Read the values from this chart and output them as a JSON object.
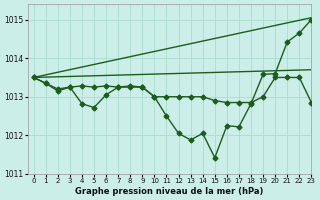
{
  "background_color": "#cceee8",
  "grid_color": "#aaddcc",
  "line_color": "#1e5c1e",
  "title": "Graphe pression niveau de la mer (hPa)",
  "xlim": [
    -0.5,
    23
  ],
  "ylim": [
    1011.0,
    1015.4
  ],
  "yticks": [
    1011,
    1012,
    1013,
    1014,
    1015
  ],
  "xticks": [
    0,
    1,
    2,
    3,
    4,
    5,
    6,
    7,
    8,
    9,
    10,
    11,
    12,
    13,
    14,
    15,
    16,
    17,
    18,
    19,
    20,
    21,
    22,
    23
  ],
  "series": [
    {
      "x": [
        0,
        23
      ],
      "y": [
        1013.5,
        1015.05
      ],
      "marker": null,
      "markersize": 0,
      "linewidth": 1.0
    },
    {
      "x": [
        0,
        23
      ],
      "y": [
        1013.5,
        1013.7
      ],
      "marker": null,
      "markersize": 0,
      "linewidth": 1.0
    },
    {
      "x": [
        0,
        1,
        2,
        3,
        4,
        5,
        6,
        7,
        8,
        9,
        10,
        11,
        12,
        13,
        14,
        15,
        16,
        17,
        18,
        19,
        20,
        21,
        22,
        23
      ],
      "y": [
        1013.5,
        1013.35,
        1013.15,
        1013.25,
        1012.82,
        1012.72,
        1013.05,
        1013.25,
        1013.25,
        1013.25,
        1013.0,
        1012.5,
        1012.05,
        1011.88,
        1012.05,
        1011.42,
        1012.25,
        1012.22,
        1012.82,
        1013.58,
        1013.6,
        1014.42,
        1014.65,
        1015.0
      ],
      "marker": "D",
      "markersize": 2.5,
      "linewidth": 1.0
    },
    {
      "x": [
        0,
        1,
        2,
        3,
        4,
        5,
        6,
        7,
        8,
        9,
        10,
        11,
        12,
        13,
        14,
        15,
        16,
        17,
        18,
        19,
        20,
        21,
        22,
        23
      ],
      "y": [
        1013.5,
        1013.35,
        1013.2,
        1013.25,
        1013.28,
        1013.25,
        1013.28,
        1013.25,
        1013.28,
        1013.25,
        1013.0,
        1013.0,
        1013.0,
        1013.0,
        1013.0,
        1012.9,
        1012.85,
        1012.85,
        1012.85,
        1013.0,
        1013.5,
        1013.5,
        1013.5,
        1012.85
      ],
      "marker": "D",
      "markersize": 2.5,
      "linewidth": 1.0
    }
  ]
}
